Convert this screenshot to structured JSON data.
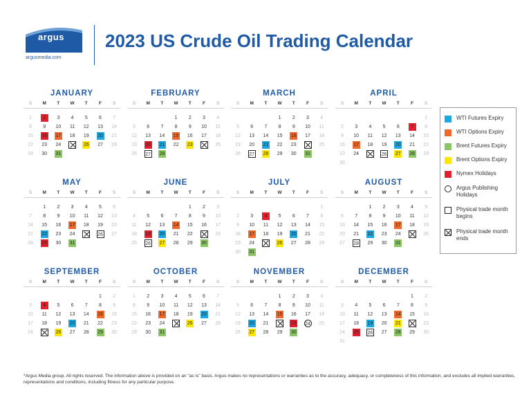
{
  "header": {
    "logo_text": "argus",
    "logo_url": "argusmedia.com",
    "title": "2023 US Crude Oil Trading Calendar"
  },
  "weekday_labels": [
    "S",
    "M",
    "T",
    "W",
    "T",
    "F",
    "S"
  ],
  "colors": {
    "brand_blue": "#1f5aa6",
    "wti_futures": "#1ca7e0",
    "wti_options": "#ef6a2a",
    "brent_futures": "#8cc665",
    "brent_options": "#ffe600",
    "nymex_holiday": "#e21f2d"
  },
  "months": [
    {
      "name": "JANUARY",
      "first_weekday": 0,
      "days": 31,
      "marks": {
        "2": "nymex",
        "16": "nymex",
        "17": "wtio",
        "20": "wti",
        "25": "pe",
        "26": "brento",
        "31": "brent"
      }
    },
    {
      "name": "FEBRUARY",
      "first_weekday": 3,
      "days": 28,
      "marks": {
        "15": "wtio",
        "20": "nymex",
        "21": "wti",
        "23": "brento",
        "24": "pe",
        "27": "pb",
        "28": "brent"
      }
    },
    {
      "name": "MARCH",
      "first_weekday": 3,
      "days": 31,
      "marks": {
        "16": "wtio",
        "21": "wti",
        "24": "pe",
        "27": "pb",
        "28": "brento",
        "31": "brent"
      }
    },
    {
      "name": "APRIL",
      "first_weekday": 6,
      "days": 30,
      "marks": {
        "7": "nymex",
        "17": "wtio",
        "20": "wti",
        "25": "pe",
        "26": "pb",
        "27": "brento",
        "28": "brent"
      }
    },
    {
      "name": "MAY",
      "first_weekday": 1,
      "days": 31,
      "marks": {
        "17": "wtio",
        "22": "wti",
        "25": "pe",
        "26": "pb",
        "29": "nymex",
        "31": "brent"
      }
    },
    {
      "name": "JUNE",
      "first_weekday": 4,
      "days": 30,
      "marks": {
        "14": "wtio",
        "19": "nymex",
        "20": "wti",
        "23": "pe",
        "26": "pb",
        "27": "brento",
        "30": "brent"
      }
    },
    {
      "name": "JULY",
      "first_weekday": 6,
      "days": 31,
      "marks": {
        "4": "nymex",
        "17": "wtio",
        "20": "wti",
        "25": "pe",
        "26": "brento",
        "31": "brent"
      }
    },
    {
      "name": "AUGUST",
      "first_weekday": 2,
      "days": 31,
      "marks": {
        "17": "wtio",
        "22": "wti",
        "25": "pe",
        "28": "pb",
        "31": "brent"
      }
    },
    {
      "name": "SEPTEMBER",
      "first_weekday": 5,
      "days": 30,
      "marks": {
        "4": "nymex",
        "15": "wtio",
        "20": "wti",
        "25": "pe",
        "26": "brento",
        "29": "brent"
      }
    },
    {
      "name": "OCTOBER",
      "first_weekday": 0,
      "days": 31,
      "marks": {
        "17": "wtio",
        "20": "wti",
        "25": "pe",
        "26": "brento",
        "31": "brent"
      }
    },
    {
      "name": "NOVEMBER",
      "first_weekday": 3,
      "days": 30,
      "marks": {
        "15": "wtio",
        "20": "wti",
        "22": "pe",
        "23": "nymex",
        "24": "hol",
        "27": "brento",
        "30": "brent"
      }
    },
    {
      "name": "DECEMBER",
      "first_weekday": 5,
      "days": 31,
      "marks": {
        "14": "wtio",
        "19": "wti",
        "21": "brento",
        "22": "pe",
        "25": "nymex",
        "26": "pb",
        "28": "brent"
      }
    }
  ],
  "legend": [
    {
      "key": "wti",
      "label": "WTI Futures Expiry"
    },
    {
      "key": "wtio",
      "label": "WTI Options Expiry"
    },
    {
      "key": "brent",
      "label": "Brent Futures Expiry"
    },
    {
      "key": "brento",
      "label": "Brent Options Expiry"
    },
    {
      "key": "nymex",
      "label": "Nymex Holidays"
    },
    {
      "key": "hol",
      "label": "Argus Publishing Holidays"
    },
    {
      "key": "pb",
      "label": "Physical trade month begins"
    },
    {
      "key": "pe",
      "label": "Physical trade month ends"
    }
  ],
  "footnote": "*Argus Media group.  All rights reserved.  The information above is provided on an \"as is\" basis.  Argus makes no representations or warranties as to the accuracy, adequacy, or completeness of this information, and excludes all implied warranties, representations and conditions, including fitness for any particular purpose."
}
